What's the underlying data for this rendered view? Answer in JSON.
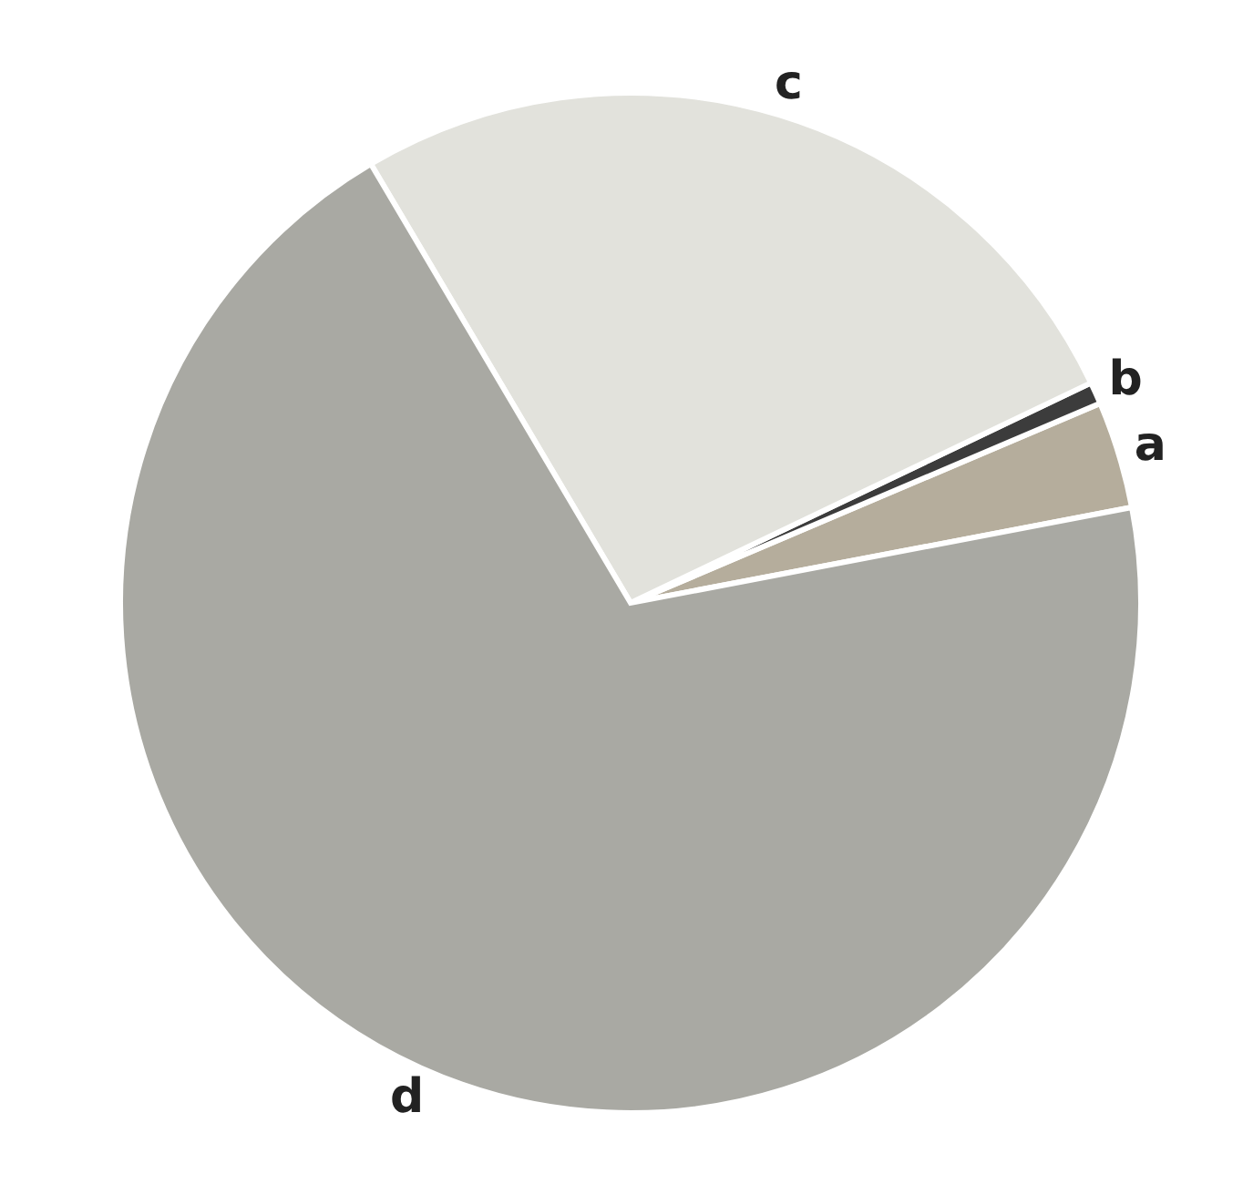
{
  "chart_data": {
    "type": "pie",
    "categories": [
      "a",
      "b",
      "c",
      "d"
    ],
    "values": [
      3.4,
      0.7,
      26.4,
      69.5
    ],
    "colors": [
      "#b5ad9c",
      "#3c3c3c",
      "#e2e2dc",
      "#a9a9a3"
    ]
  }
}
